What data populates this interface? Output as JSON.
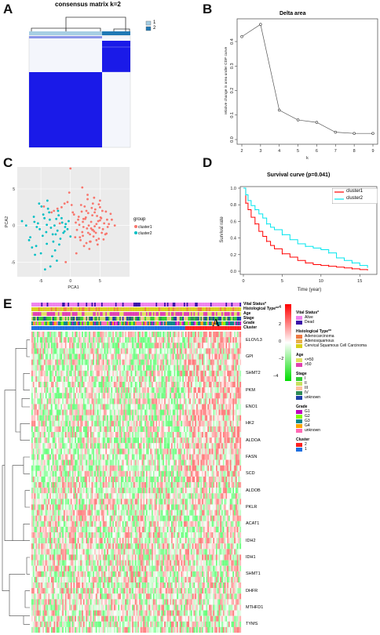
{
  "panels": {
    "A": {
      "letter": "A",
      "title": "consensus matrix k=2",
      "legend": [
        {
          "label": "1",
          "color": "#a6cee3"
        },
        {
          "label": "2",
          "color": "#1f78b4"
        }
      ]
    },
    "B": {
      "letter": "B",
      "title": "Delta area",
      "xlabel": "k",
      "ylabel": "relative change in area under CDF curve"
    },
    "C": {
      "letter": "C",
      "xlabel": "PCA1",
      "ylabel": "PCA2",
      "legend_title": "group",
      "legend": [
        {
          "label": "cluster1",
          "color": "#f8766d"
        },
        {
          "label": "cluster2",
          "color": "#00bfc4"
        }
      ]
    },
    "D": {
      "letter": "D",
      "title": "Survival curve (p=0.041)",
      "xlabel": "Time (year)",
      "ylabel": "Survival rate",
      "legend": [
        {
          "label": "cluster1",
          "color": "#ff0000"
        },
        {
          "label": "cluster2",
          "color": "#00e5ee"
        }
      ]
    },
    "E": {
      "letter": "E",
      "annotation_rows": [
        "Vital Status*",
        "Histological Type**",
        "Age",
        "Stage",
        "Grade",
        "Cluster"
      ],
      "genes": [
        "ELOVL3",
        "GPI",
        "SHMT2",
        "PKM",
        "ENO1",
        "HK2",
        "ALDOA",
        "FASN",
        "SCD",
        "ALDOB",
        "PKLR",
        "ACAT1",
        "IDH2",
        "IDH1",
        "SHMT1",
        "DHFR",
        "MTHFD1",
        "TYMS"
      ],
      "cluster_marker": "A",
      "colorbar_ticks": [
        "4",
        "2",
        "0",
        "−2",
        "−4"
      ],
      "legend_groups": [
        {
          "title": "Vital Status*",
          "items": [
            {
              "label": "Alive",
              "color": "#ee82ee"
            },
            {
              "label": "Dead",
              "color": "#3a0ea8"
            }
          ]
        },
        {
          "title": "Histological Type**",
          "items": [
            {
              "label": "Adenocarcinoma",
              "color": "#ee7942"
            },
            {
              "label": "Adenosquamous",
              "color": "#e8b04a"
            },
            {
              "label": "Cervical Squamous Cell Carcinoma",
              "color": "#d8d018"
            }
          ]
        },
        {
          "title": "Age",
          "items": [
            {
              "label": "<=50",
              "color": "#e0e060"
            },
            {
              "label": ">50",
              "color": "#e040b0"
            }
          ]
        },
        {
          "title": "Stage",
          "items": [
            {
              "label": "I",
              "color": "#32cd32"
            },
            {
              "label": "II",
              "color": "#c8e060"
            },
            {
              "label": "III",
              "color": "#ffc0a0"
            },
            {
              "label": "IV",
              "color": "#2e8b57"
            },
            {
              "label": "unknown",
              "color": "#1e3fa8"
            }
          ]
        },
        {
          "title": "Grade",
          "items": [
            {
              "label": "G1",
              "color": "#c000c0"
            },
            {
              "label": "G2",
              "color": "#7fff00"
            },
            {
              "label": "G3",
              "color": "#00868b"
            },
            {
              "label": "G4",
              "color": "#ffa500"
            },
            {
              "label": "unknown",
              "color": "#ff69b4"
            }
          ]
        },
        {
          "title": "Cluster",
          "items": [
            {
              "label": "2",
              "color": "#ff2020"
            },
            {
              "label": "1",
              "color": "#1e6fe0"
            }
          ]
        }
      ]
    }
  },
  "chart_data": [
    {
      "panel": "B",
      "type": "line",
      "title": "Delta area",
      "xlabel": "k",
      "ylabel": "relative change in area under CDF curve",
      "x": [
        2,
        3,
        4,
        5,
        6,
        7,
        8,
        9
      ],
      "y": [
        0.42,
        0.47,
        0.12,
        0.08,
        0.07,
        0.03,
        0.025,
        0.025
      ],
      "xlim": [
        2,
        9
      ],
      "ylim": [
        0,
        0.48
      ],
      "xticks": [
        "2",
        "3",
        "4",
        "5",
        "6",
        "7",
        "8",
        "9"
      ],
      "yticks": [
        "0.0",
        "0.1",
        "0.2",
        "0.3",
        "0.4"
      ]
    },
    {
      "panel": "C",
      "type": "scatter",
      "xlabel": "PCA1",
      "ylabel": "PCA2",
      "xticks": [
        "-5",
        "0",
        "5"
      ],
      "yticks": [
        "5",
        "0",
        "-5"
      ],
      "xlim": [
        -9,
        10
      ],
      "ylim": [
        -7,
        8
      ],
      "series": [
        {
          "name": "cluster1",
          "color": "#f8766d",
          "x": [
            3.5,
            4.1,
            2.2,
            5.0,
            1.4,
            3.0,
            6.2,
            4.8,
            2.7,
            0.9,
            5.5,
            3.8,
            2.1,
            4.4,
            1.8,
            6.8,
            3.3,
            5.2,
            2.5,
            4.0,
            1.1,
            3.7,
            5.9,
            2.9,
            4.6,
            0.6,
            3.1,
            5.0,
            2.3,
            4.2,
            6.3,
            1.7,
            3.9,
            2.6,
            5.4,
            4.7,
            3.2,
            1.3,
            6.0,
            2.8,
            4.3,
            5.7,
            3.6,
            2.0,
            4.9,
            0.8,
            3.4,
            5.3,
            2.4,
            4.5,
            1.5,
            6.5,
            3.0,
            4.1,
            2.2,
            5.1,
            3.8,
            1.9,
            4.0,
            5.6,
            2.7,
            3.5,
            0.4,
            4.8,
            6.1,
            2.1,
            3.3,
            5.0,
            1.6,
            4.4,
            7.0,
            2.9,
            3.7,
            -0.5,
            -1.5,
            -2.8,
            -0.2,
            -3.2,
            0.2,
            -1.0,
            -2.2,
            1.0,
            -0.8,
            -4.5,
            -1.8,
            2.0,
            7.5,
            0.0
          ],
          "y": [
            0.5,
            1.8,
            -0.2,
            2.5,
            1.2,
            -1.0,
            0.8,
            -1.8,
            2.0,
            0.4,
            -0.5,
            3.0,
            -1.4,
            0.2,
            2.8,
            1.6,
            -2.2,
            1.0,
            0.9,
            -0.8,
            -0.6,
            1.4,
            -1.2,
            3.6,
            -2.6,
            1.5,
            0.0,
            3.4,
            -2.8,
            2.2,
            -0.2,
            -2.0,
            -1.5,
            1.1,
            2.0,
            0.6,
            -3.2,
            0.8,
            1.9,
            -0.4,
            -1.0,
            0.3,
            2.4,
            -0.9,
            -0.3,
            -1.6,
            -2.2,
            -1.0,
            2.6,
            1.3,
            0.1,
            0.2,
            1.7,
            -0.1,
            0.9,
            1.1,
            -0.6,
            1.9,
            3.8,
            -1.9,
            -2.4,
            -0.4,
            1.8,
            2.9,
            -1.1,
            0.5,
            -1.2,
            0.7,
            -1.6,
            -2.0,
            0.8,
            4.2,
            -0.6,
            3.2,
            2.5,
            2.0,
            4.5,
            1.8,
            2.8,
            3.0,
            2.3,
            -3.8,
            -5.0,
            2.6,
            0.3,
            5.2,
            0.0,
            7.8
          ]
        },
        {
          "name": "cluster2",
          "color": "#00bfc4",
          "x": [
            -3.5,
            -5.2,
            -2.1,
            -6.8,
            -4.0,
            -1.5,
            -3.0,
            -7.5,
            -2.6,
            -4.6,
            -5.8,
            -1.0,
            -3.8,
            -2.3,
            -6.1,
            -4.3,
            -0.8,
            -5.0,
            -3.3,
            -2.0,
            -4.9,
            -1.7,
            -6.5,
            -3.6,
            -2.9,
            -5.5,
            -0.5,
            -4.1,
            -7.0,
            -2.4,
            -3.1,
            -1.2,
            -5.3,
            -4.7,
            -2.7,
            -6.2,
            -1.9,
            -3.4,
            -0.3,
            -5.7,
            -4.4,
            0.0,
            -2.2,
            -8.2,
            -3.9,
            -1.4,
            -6.0,
            -2.5,
            -4.0,
            -0.9
          ],
          "y": [
            0.8,
            -0.5,
            2.0,
            -1.6,
            -2.5,
            1.0,
            -1.2,
            0.0,
            -3.4,
            1.5,
            -2.8,
            -0.8,
            2.3,
            -4.8,
            0.5,
            -6.0,
            0.2,
            -3.8,
            -0.3,
            1.4,
            2.6,
            -1.8,
            -3.0,
            1.8,
            -2.2,
            0.3,
            -0.5,
            -0.9,
            -2.0,
            0.9,
            -4.2,
            -1.0,
            3.0,
            -1.4,
            0.0,
            1.2,
            -2.6,
            -5.6,
            0.6,
            -0.2,
            1.0,
            -1.5,
            -0.7,
            0.6,
            3.4,
            0.4,
            -4.0,
            -1.2,
            0.1,
            -0.2
          ]
        }
      ]
    },
    {
      "panel": "D",
      "type": "line",
      "title": "Survival curve (p=0.041)",
      "xlabel": "Time (year)",
      "ylabel": "Survival rate",
      "xlim": [
        0,
        17
      ],
      "ylim": [
        0,
        1
      ],
      "xticks": [
        "0",
        "5",
        "10",
        "15"
      ],
      "yticks": [
        "0.0",
        "0.2",
        "0.4",
        "0.6",
        "0.8",
        "1.0"
      ],
      "series": [
        {
          "name": "cluster1",
          "color": "#ff0000",
          "x": [
            0,
            0.3,
            0.6,
            1,
            1.5,
            2,
            2.5,
            3,
            3.5,
            4,
            5,
            6,
            7,
            8,
            9,
            10,
            11,
            12,
            13,
            14,
            15,
            16
          ],
          "y": [
            1,
            0.82,
            0.74,
            0.65,
            0.57,
            0.48,
            0.42,
            0.36,
            0.31,
            0.27,
            0.21,
            0.17,
            0.13,
            0.1,
            0.08,
            0.07,
            0.06,
            0.05,
            0.04,
            0.03,
            0.02,
            0.01
          ]
        },
        {
          "name": "cluster2",
          "color": "#00e5ee",
          "x": [
            0,
            0.3,
            0.6,
            1,
            1.5,
            2,
            2.5,
            3,
            3.5,
            4,
            5,
            6,
            7,
            8,
            9,
            10,
            11,
            12,
            13,
            14,
            15,
            16
          ],
          "y": [
            1,
            0.92,
            0.85,
            0.79,
            0.74,
            0.69,
            0.64,
            0.57,
            0.53,
            0.5,
            0.44,
            0.38,
            0.33,
            0.3,
            0.28,
            0.26,
            0.22,
            0.16,
            0.13,
            0.1,
            0.07,
            0.04
          ]
        }
      ]
    }
  ]
}
